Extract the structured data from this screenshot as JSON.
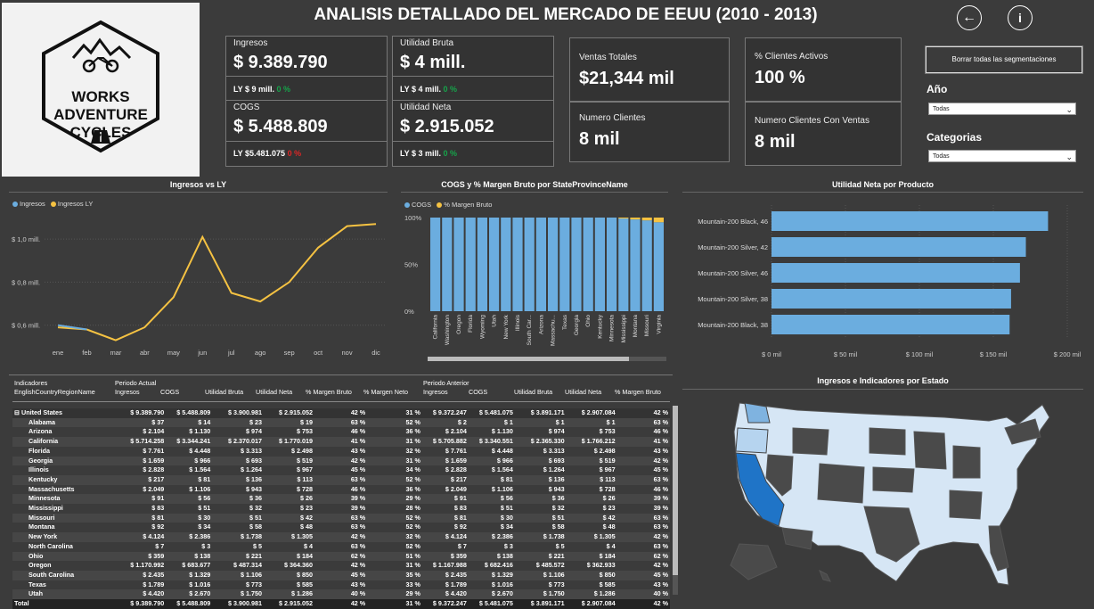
{
  "title": "ANALISIS DETALLADO DEL MERCADO DE EEUU (2010 - 2013)",
  "logo": {
    "line1": "WORKS",
    "line2": "ADVENTURE",
    "line3": "CYCLES"
  },
  "kpis": {
    "ingresos": {
      "label": "Ingresos",
      "value": "$ 9.389.790",
      "ly": "LY $ 9 mill.",
      "pct": "0 %"
    },
    "cogs": {
      "label": "COGS",
      "value": "$ 5.488.809",
      "ly": "LY $5.481.075",
      "pct": "0 %"
    },
    "utilidad_bruta": {
      "label": "Utilidad Bruta",
      "value": "$ 4 mill.",
      "ly": "LY $ 4 mill.",
      "pct": "0 %"
    },
    "utilidad_neta": {
      "label": "Utilidad Neta",
      "value": "$ 2.915.052",
      "ly": "LY $ 3 mill.",
      "pct": "0 %"
    },
    "ventas_totales": {
      "label": "Ventas Totales",
      "value": "$21,344 mil"
    },
    "numero_clientes": {
      "label": "Numero Clientes",
      "value": "8 mil"
    },
    "clientes_activos": {
      "label": "% Clientes Activos",
      "value": "100 %"
    },
    "clientes_con_ventas": {
      "label": "Numero Clientes Con Ventas",
      "value": "8 mil"
    }
  },
  "nav": {
    "back_icon": "←",
    "info_icon": "i"
  },
  "filters": {
    "clear_label": "Borrar todas las segmentaciones",
    "year_label": "Año",
    "year_value": "Todas",
    "category_label": "Categorias",
    "category_value": "Todas"
  },
  "colors": {
    "blue": "#6baddf",
    "gold": "#f5c242",
    "background": "#3b3b3b"
  },
  "charts": {
    "ingresos": {
      "title": "Ingresos vs LY",
      "legend1": "Ingresos",
      "legend2": "Ingresos LY"
    },
    "cogs": {
      "title": "COGS y % Margen Bruto por StateProvinceName",
      "legend1": "COGS",
      "legend2": "% Margen Bruto"
    },
    "utilidad": {
      "title": "Utilidad Neta por Producto"
    },
    "mapa": {
      "title": "Ingresos e Indicadores por Estado"
    }
  },
  "chart_data": [
    {
      "type": "line",
      "title": "Ingresos vs LY",
      "categories": [
        "ene",
        "feb",
        "mar",
        "abr",
        "may",
        "jun",
        "jul",
        "ago",
        "sep",
        "oct",
        "nov",
        "dic"
      ],
      "y_ticks": [
        "$ 1,0 mill.",
        "$ 0,8 mill.",
        "$ 0,6 mill."
      ],
      "ylim": [
        0.52,
        1.1
      ],
      "series": [
        {
          "name": "Ingresos",
          "values": [
            0.6,
            0.58,
            null,
            null,
            null,
            null,
            null,
            null,
            null,
            null,
            null,
            null
          ]
        },
        {
          "name": "Ingresos LY",
          "values": [
            0.59,
            0.58,
            0.53,
            0.59,
            0.73,
            1.01,
            0.75,
            0.71,
            0.8,
            0.96,
            1.06,
            1.07
          ]
        }
      ]
    },
    {
      "type": "bar",
      "title": "COGS y % Margen Bruto por StateProvinceName",
      "categories": [
        "California",
        "Washington",
        "Oregon",
        "Florida",
        "Wyoming",
        "Utah",
        "New York",
        "Illinois",
        "South Car...",
        "Arizona",
        "Massachu...",
        "Texas",
        "Georgia",
        "Ohio",
        "Kentucky",
        "Minnesota",
        "Mississippi",
        "Montana",
        "Missouri",
        "Virginia"
      ],
      "y_ticks": [
        "100%",
        "50%",
        "0%"
      ],
      "series": [
        {
          "name": "COGS",
          "values": [
            100,
            100,
            100,
            100,
            100,
            100,
            100,
            100,
            100,
            100,
            100,
            100,
            100,
            100,
            100,
            100,
            99,
            98,
            97,
            95
          ]
        },
        {
          "name": "% Margen Bruto",
          "values": [
            0,
            0,
            0,
            0,
            0,
            0,
            0,
            0,
            0,
            0,
            0,
            0,
            0,
            0,
            0,
            0,
            1,
            2,
            3,
            5
          ]
        }
      ]
    },
    {
      "type": "bar",
      "title": "Utilidad Neta por Producto",
      "categories": [
        "Mountain-200 Black, 46",
        "Mountain-200 Silver, 42",
        "Mountain-200 Silver, 46",
        "Mountain-200 Silver, 38",
        "Mountain-200 Black, 38"
      ],
      "values": [
        187,
        172,
        168,
        162,
        161
      ],
      "x_ticks": [
        "$ 0 mil",
        "$ 50 mil",
        "$ 100 mil",
        "$ 150 mil",
        "$ 200 mil"
      ],
      "xlim": [
        0,
        200
      ]
    }
  ],
  "matrix": {
    "header_top": {
      "col0": "Indicadores",
      "actual": "Periodo Actual",
      "anterior": "Periodo Anterior"
    },
    "columns": [
      "EnglishCountryRegionName",
      "Ingresos",
      "COGS",
      "Utilidad Bruta",
      "Utilidad Neta",
      "% Margen Bruto",
      "% Margen Neto",
      "Ingresos",
      "COGS",
      "Utilidad Bruta",
      "Utilidad Neta",
      "% Margen Bruto"
    ],
    "rows": [
      [
        "⊟  United States",
        "$ 9.389.790",
        "$ 5.488.809",
        "$ 3.900.981",
        "$ 2.915.052",
        "42 %",
        "31 %",
        "$ 9.372.247",
        "$ 5.481.075",
        "$ 3.891.171",
        "$ 2.907.084",
        "42 %"
      ],
      [
        "Alabama",
        "$ 37",
        "$ 14",
        "$ 23",
        "$ 19",
        "63 %",
        "52 %",
        "$ 2",
        "$ 1",
        "$ 1",
        "$ 1",
        "63 %"
      ],
      [
        "Arizona",
        "$ 2.104",
        "$ 1.130",
        "$ 974",
        "$ 753",
        "46 %",
        "36 %",
        "$ 2.104",
        "$ 1.130",
        "$ 974",
        "$ 753",
        "46 %"
      ],
      [
        "California",
        "$ 5.714.258",
        "$ 3.344.241",
        "$ 2.370.017",
        "$ 1.770.019",
        "41 %",
        "31 %",
        "$ 5.705.882",
        "$ 3.340.551",
        "$ 2.365.330",
        "$ 1.766.212",
        "41 %"
      ],
      [
        "Florida",
        "$ 7.761",
        "$ 4.448",
        "$ 3.313",
        "$ 2.498",
        "43 %",
        "32 %",
        "$ 7.761",
        "$ 4.448",
        "$ 3.313",
        "$ 2.498",
        "43 %"
      ],
      [
        "Georgia",
        "$ 1.659",
        "$ 966",
        "$ 693",
        "$ 519",
        "42 %",
        "31 %",
        "$ 1.659",
        "$ 966",
        "$ 693",
        "$ 519",
        "42 %"
      ],
      [
        "Illinois",
        "$ 2.828",
        "$ 1.564",
        "$ 1.264",
        "$ 967",
        "45 %",
        "34 %",
        "$ 2.828",
        "$ 1.564",
        "$ 1.264",
        "$ 967",
        "45 %"
      ],
      [
        "Kentucky",
        "$ 217",
        "$ 81",
        "$ 136",
        "$ 113",
        "63 %",
        "52 %",
        "$ 217",
        "$ 81",
        "$ 136",
        "$ 113",
        "63 %"
      ],
      [
        "Massachusetts",
        "$ 2.049",
        "$ 1.106",
        "$ 943",
        "$ 728",
        "46 %",
        "36 %",
        "$ 2.049",
        "$ 1.106",
        "$ 943",
        "$ 728",
        "46 %"
      ],
      [
        "Minnesota",
        "$ 91",
        "$ 56",
        "$ 36",
        "$ 26",
        "39 %",
        "29 %",
        "$ 91",
        "$ 56",
        "$ 36",
        "$ 26",
        "39 %"
      ],
      [
        "Mississippi",
        "$ 83",
        "$ 51",
        "$ 32",
        "$ 23",
        "39 %",
        "28 %",
        "$ 83",
        "$ 51",
        "$ 32",
        "$ 23",
        "39 %"
      ],
      [
        "Missouri",
        "$ 81",
        "$ 30",
        "$ 51",
        "$ 42",
        "63 %",
        "52 %",
        "$ 81",
        "$ 30",
        "$ 51",
        "$ 42",
        "63 %"
      ],
      [
        "Montana",
        "$ 92",
        "$ 34",
        "$ 58",
        "$ 48",
        "63 %",
        "52 %",
        "$ 92",
        "$ 34",
        "$ 58",
        "$ 48",
        "63 %"
      ],
      [
        "New York",
        "$ 4.124",
        "$ 2.386",
        "$ 1.738",
        "$ 1.305",
        "42 %",
        "32 %",
        "$ 4.124",
        "$ 2.386",
        "$ 1.738",
        "$ 1.305",
        "42 %"
      ],
      [
        "North Carolina",
        "$ 7",
        "$ 3",
        "$ 5",
        "$ 4",
        "63 %",
        "52 %",
        "$ 7",
        "$ 3",
        "$ 5",
        "$ 4",
        "63 %"
      ],
      [
        "Ohio",
        "$ 359",
        "$ 138",
        "$ 221",
        "$ 184",
        "62 %",
        "51 %",
        "$ 359",
        "$ 138",
        "$ 221",
        "$ 184",
        "62 %"
      ],
      [
        "Oregon",
        "$ 1.170.992",
        "$ 683.677",
        "$ 487.314",
        "$ 364.360",
        "42 %",
        "31 %",
        "$ 1.167.988",
        "$ 682.416",
        "$ 485.572",
        "$ 362.933",
        "42 %"
      ],
      [
        "South Carolina",
        "$ 2.435",
        "$ 1.329",
        "$ 1.106",
        "$ 850",
        "45 %",
        "35 %",
        "$ 2.435",
        "$ 1.329",
        "$ 1.106",
        "$ 850",
        "45 %"
      ],
      [
        "Texas",
        "$ 1.789",
        "$ 1.016",
        "$ 773",
        "$ 585",
        "43 %",
        "33 %",
        "$ 1.789",
        "$ 1.016",
        "$ 773",
        "$ 585",
        "43 %"
      ],
      [
        "Utah",
        "$ 4.420",
        "$ 2.670",
        "$ 1.750",
        "$ 1.286",
        "40 %",
        "29 %",
        "$ 4.420",
        "$ 2.670",
        "$ 1.750",
        "$ 1.286",
        "40 %"
      ],
      [
        "Total",
        "$ 9.389.790",
        "$ 5.488.809",
        "$ 3.900.981",
        "$ 2.915.052",
        "42 %",
        "31 %",
        "$ 9.372.247",
        "$ 5.481.075",
        "$ 3.891.171",
        "$ 2.907.084",
        "42 %"
      ]
    ]
  }
}
